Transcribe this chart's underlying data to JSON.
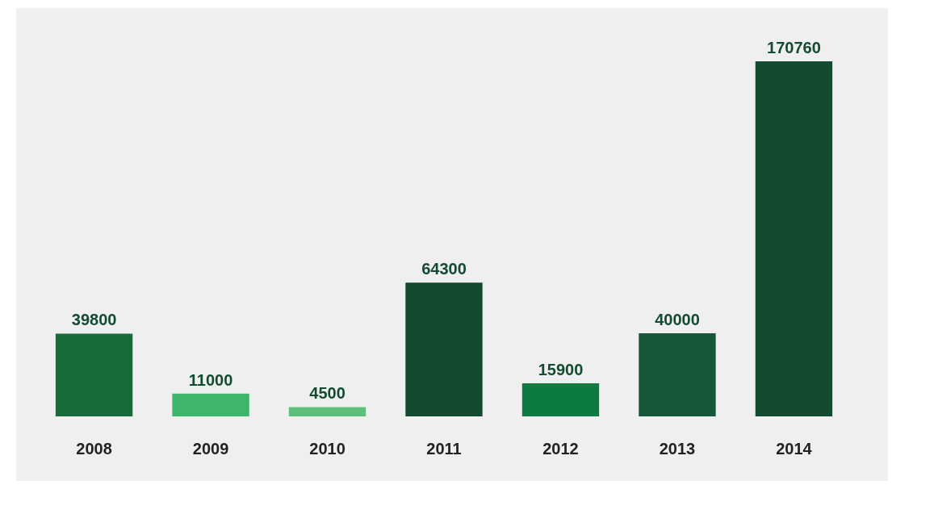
{
  "chart_data": {
    "type": "bar",
    "categories": [
      "2008",
      "2009",
      "2010",
      "2011",
      "2012",
      "2013",
      "2014"
    ],
    "values": [
      39800,
      11000,
      4500,
      64300,
      15900,
      40000,
      170760
    ],
    "colors": [
      "#176a3a",
      "#3db66b",
      "#5cc07c",
      "#134b31",
      "#0d7a41",
      "#18583a",
      "#134b31"
    ],
    "data_labels": true
  }
}
